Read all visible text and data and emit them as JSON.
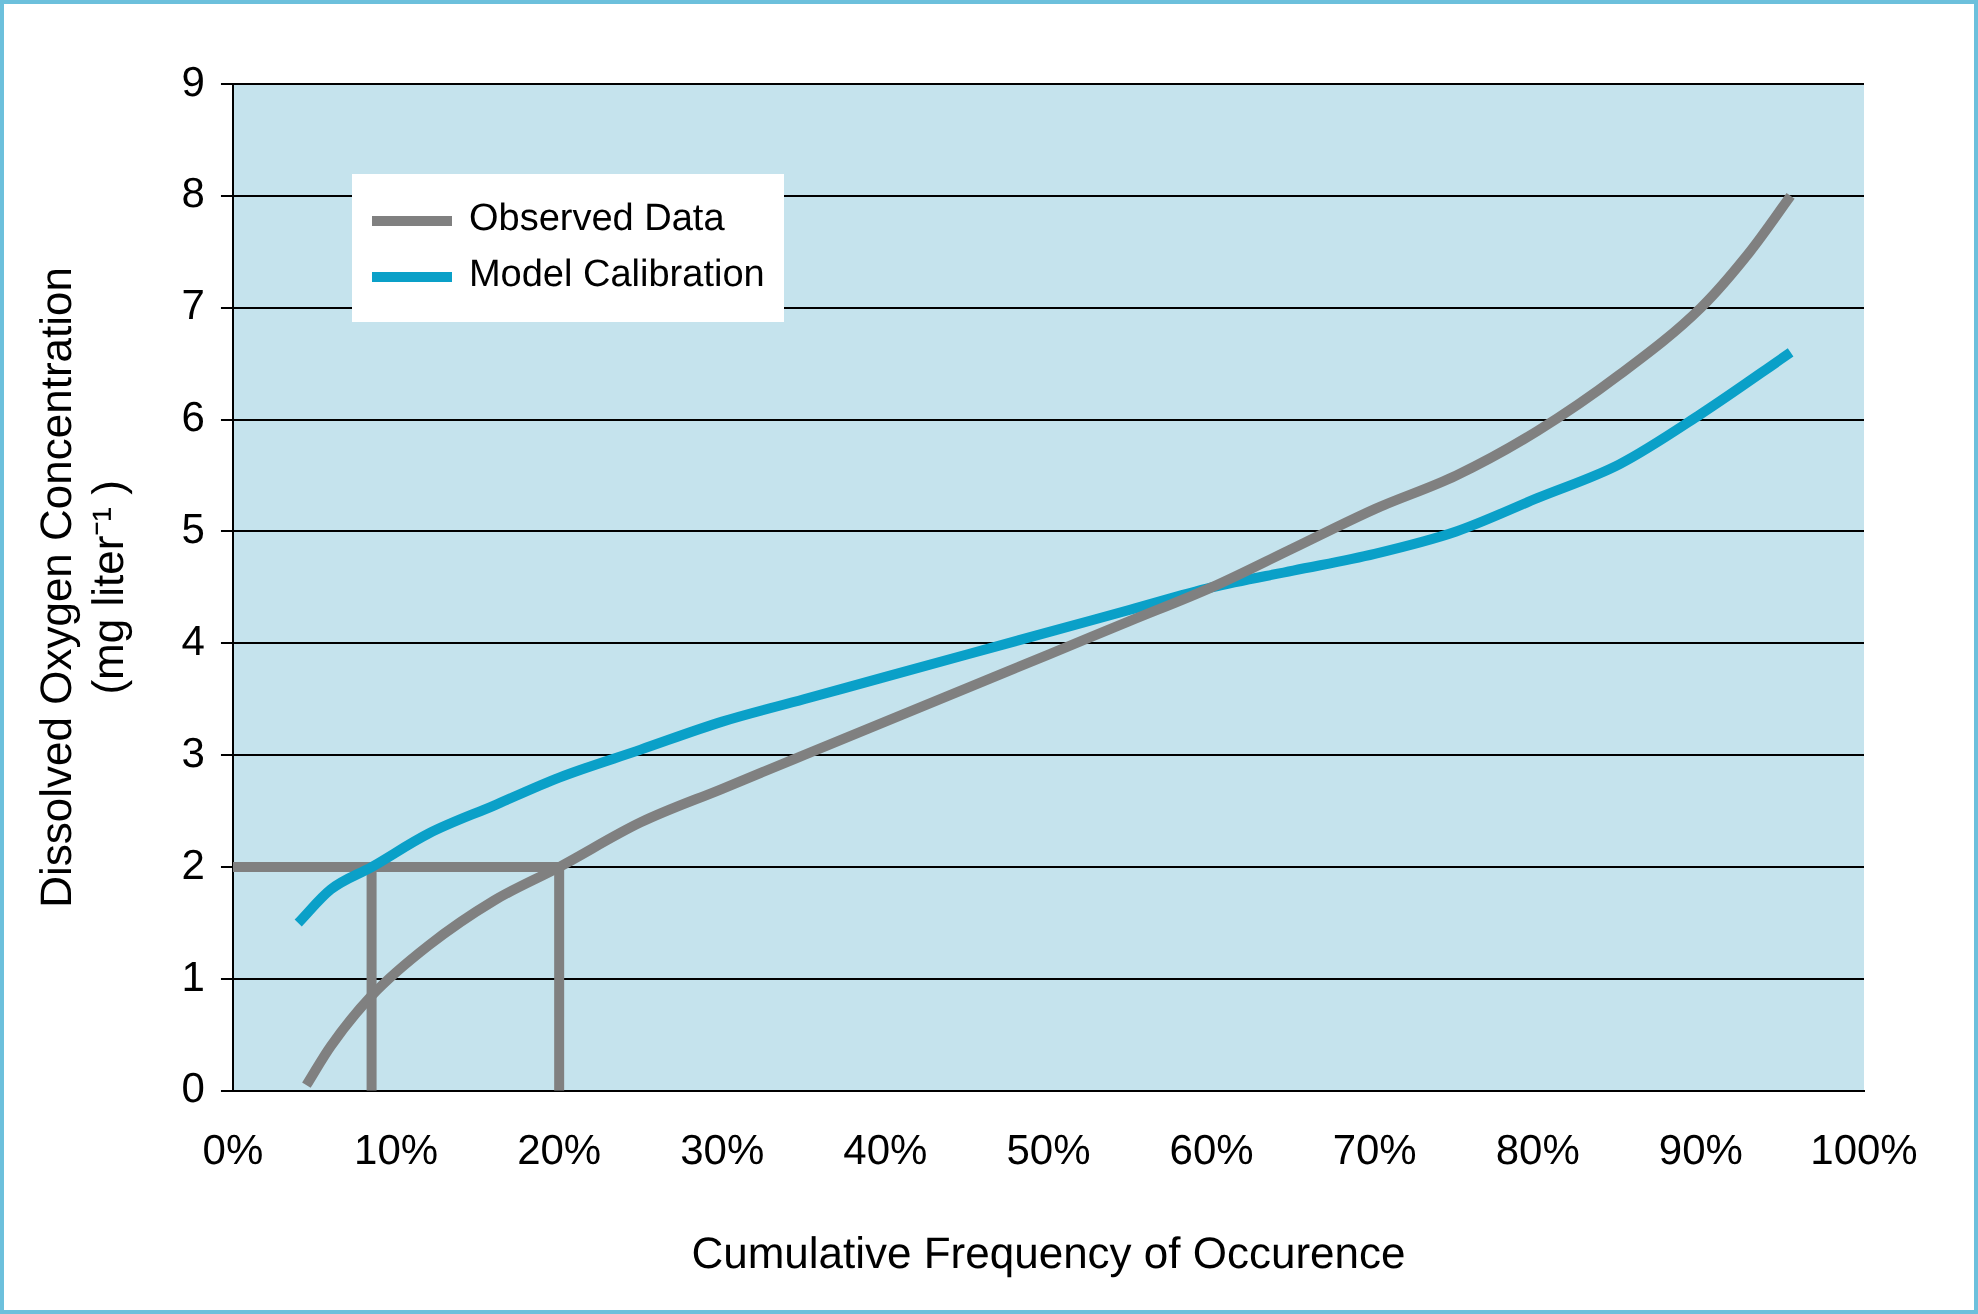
{
  "chart_data": {
    "type": "line",
    "xlabel": "Cumulative Frequency of Occurence",
    "ylabel": "Dissolved Oxygen Concentration\n(mg liter⁻¹ )",
    "xlim": [
      0,
      100
    ],
    "ylim": [
      0,
      9
    ],
    "xticks": [
      {
        "value": 0,
        "label": "0%"
      },
      {
        "value": 10,
        "label": "10%"
      },
      {
        "value": 20,
        "label": "20%"
      },
      {
        "value": 30,
        "label": "30%"
      },
      {
        "value": 40,
        "label": "40%"
      },
      {
        "value": 50,
        "label": "50%"
      },
      {
        "value": 60,
        "label": "60%"
      },
      {
        "value": 70,
        "label": "70%"
      },
      {
        "value": 80,
        "label": "80%"
      },
      {
        "value": 90,
        "label": "90%"
      },
      {
        "value": 100,
        "label": "100%"
      }
    ],
    "yticks": [
      0,
      1,
      2,
      3,
      4,
      5,
      6,
      7,
      8,
      9
    ],
    "grid": "y",
    "legend": "top left",
    "marker": "none",
    "line_style": "solid",
    "series": [
      {
        "name": "Observed Data",
        "color": "#808080",
        "x": [
          4.5,
          6,
          8.5,
          12,
          16,
          20,
          25,
          30,
          35,
          40,
          45,
          50,
          55,
          60,
          65,
          70,
          75,
          80,
          85,
          90,
          93,
          95.5
        ],
        "values": [
          0.05,
          0.4,
          0.85,
          1.3,
          1.7,
          2.0,
          2.4,
          2.7,
          3.0,
          3.3,
          3.6,
          3.9,
          4.2,
          4.5,
          4.85,
          5.2,
          5.5,
          5.9,
          6.4,
          7.0,
          7.5,
          8.0
        ]
      },
      {
        "name": "Model Calibration",
        "color": "#0aa0c8",
        "x": [
          4,
          6,
          8.5,
          12,
          16,
          20,
          25,
          30,
          35,
          40,
          45,
          50,
          55,
          60,
          65,
          70,
          75,
          80,
          85,
          90,
          95.5
        ],
        "values": [
          1.5,
          1.8,
          2.0,
          2.3,
          2.55,
          2.8,
          3.05,
          3.3,
          3.5,
          3.7,
          3.9,
          4.1,
          4.3,
          4.5,
          4.65,
          4.8,
          5.0,
          5.3,
          5.6,
          6.05,
          6.6
        ]
      },
      {
        "color": "#808080",
        "x": [
          0,
          20,
          20
        ],
        "values": [
          2,
          2,
          0
        ]
      },
      {
        "color": "#808080",
        "x": [
          8.5,
          8.5
        ],
        "values": [
          2,
          0
        ]
      }
    ]
  }
}
